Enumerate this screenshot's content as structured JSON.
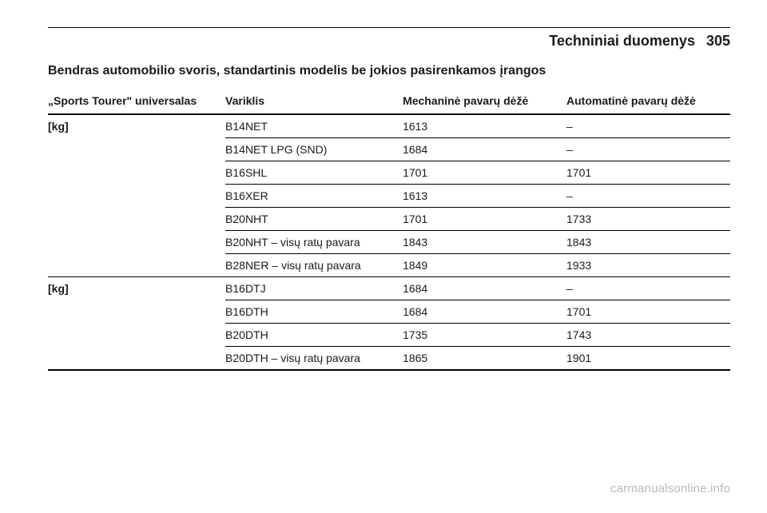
{
  "header": {
    "section_title": "Techniniai duomenys",
    "page_number": "305"
  },
  "subtitle": "Bendras automobilio svoris, standartinis modelis be jokios pasirenkamos įrangos",
  "table": {
    "columns": [
      "„Sports Tourer\" universalas",
      "Variklis",
      "Mechaninė pavarų dėžė",
      "Automatinė pavarų dėžė"
    ],
    "groups": [
      {
        "label": "[kg]",
        "rows": [
          {
            "engine": "B14NET",
            "manual": "1613",
            "auto": "–"
          },
          {
            "engine": "B14NET LPG (SND)",
            "manual": "1684",
            "auto": "–"
          },
          {
            "engine": "B16SHL",
            "manual": "1701",
            "auto": "1701"
          },
          {
            "engine": "B16XER",
            "manual": "1613",
            "auto": "–"
          },
          {
            "engine": "B20NHT",
            "manual": "1701",
            "auto": "1733"
          },
          {
            "engine": "B20NHT – visų ratų pavara",
            "manual": "1843",
            "auto": "1843"
          },
          {
            "engine": "B28NER – visų ratų pavara",
            "manual": "1849",
            "auto": "1933"
          }
        ]
      },
      {
        "label": "[kg]",
        "rows": [
          {
            "engine": "B16DTJ",
            "manual": "1684",
            "auto": "–"
          },
          {
            "engine": "B16DTH",
            "manual": "1684",
            "auto": "1701"
          },
          {
            "engine": "B20DTH",
            "manual": "1735",
            "auto": "1743"
          },
          {
            "engine": "B20DTH – visų ratų pavara",
            "manual": "1865",
            "auto": "1901"
          }
        ]
      }
    ]
  },
  "watermark": "carmanualsonline.info"
}
